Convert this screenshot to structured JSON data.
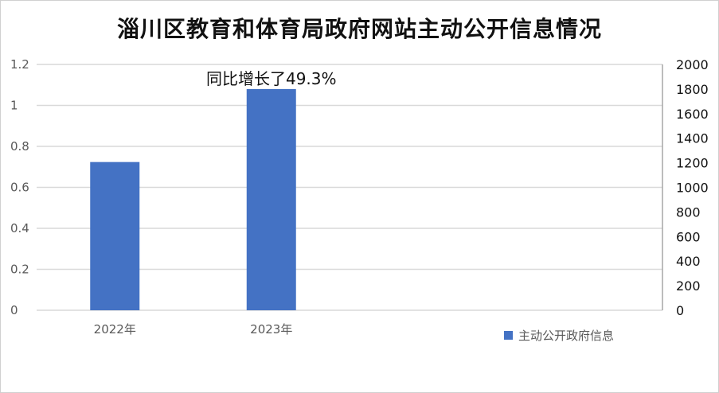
{
  "chart_data": {
    "type": "bar",
    "title": "淄川区教育和体育局政府网站主动公开信息情况",
    "categories": [
      "2022年",
      "2023年"
    ],
    "series": [
      {
        "name": "主动公开政府信息",
        "values": [
          1206,
          1800
        ],
        "color": "#4472C4",
        "axis": "right"
      }
    ],
    "left_axis": {
      "ylim": [
        0,
        1.2
      ],
      "ticks": [
        "0",
        "0.2",
        "0.4",
        "0.6",
        "0.8",
        "1",
        "1.2"
      ]
    },
    "right_axis": {
      "ylim": [
        0,
        2000
      ],
      "ticks": [
        "0",
        "200",
        "400",
        "600",
        "800",
        "1000",
        "1200",
        "1400",
        "1600",
        "1800",
        "2000"
      ]
    },
    "annotations": [
      {
        "text": "同比增长了49.3%",
        "category": "2023年"
      }
    ],
    "grid": true,
    "legend": "bottom-right"
  }
}
